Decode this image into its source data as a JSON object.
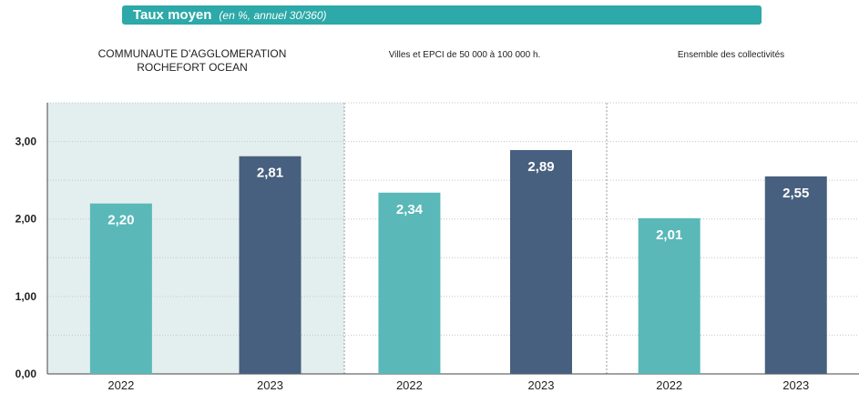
{
  "header": {
    "title": "Taux moyen",
    "subtitle": "(en %, annuel 30/360)"
  },
  "colors": {
    "banner": "#2ca9a8",
    "bar_2022": "#5ab8b9",
    "bar_2023": "#48607f",
    "highlight_panel": "#e3efef"
  },
  "chart_data": {
    "type": "bar",
    "groups": [
      {
        "title_lines": [
          "COMMUNAUTE D'AGGLOMERATION",
          "ROCHEFORT OCEAN"
        ],
        "highlighted": true
      },
      {
        "title_lines": [
          "Villes et EPCI de 50 000 à 100 000 h."
        ],
        "highlighted": false
      },
      {
        "title_lines": [
          "Ensemble des collectivités"
        ],
        "highlighted": false
      }
    ],
    "categories": [
      "2022",
      "2023"
    ],
    "series": [
      {
        "group": 0,
        "values": [
          2.2,
          2.81
        ],
        "labels": [
          "2,20",
          "2,81"
        ]
      },
      {
        "group": 1,
        "values": [
          2.34,
          2.89
        ],
        "labels": [
          "2,34",
          "2,89"
        ]
      },
      {
        "group": 2,
        "values": [
          2.01,
          2.55
        ],
        "labels": [
          "2,01",
          "2,55"
        ]
      }
    ],
    "y_ticks": [
      0,
      1,
      2,
      3
    ],
    "y_tick_labels": [
      "0,00",
      "1,00",
      "2,00",
      "3,00"
    ],
    "ylim": [
      0,
      3.5
    ],
    "grid": true,
    "legend": "none"
  }
}
